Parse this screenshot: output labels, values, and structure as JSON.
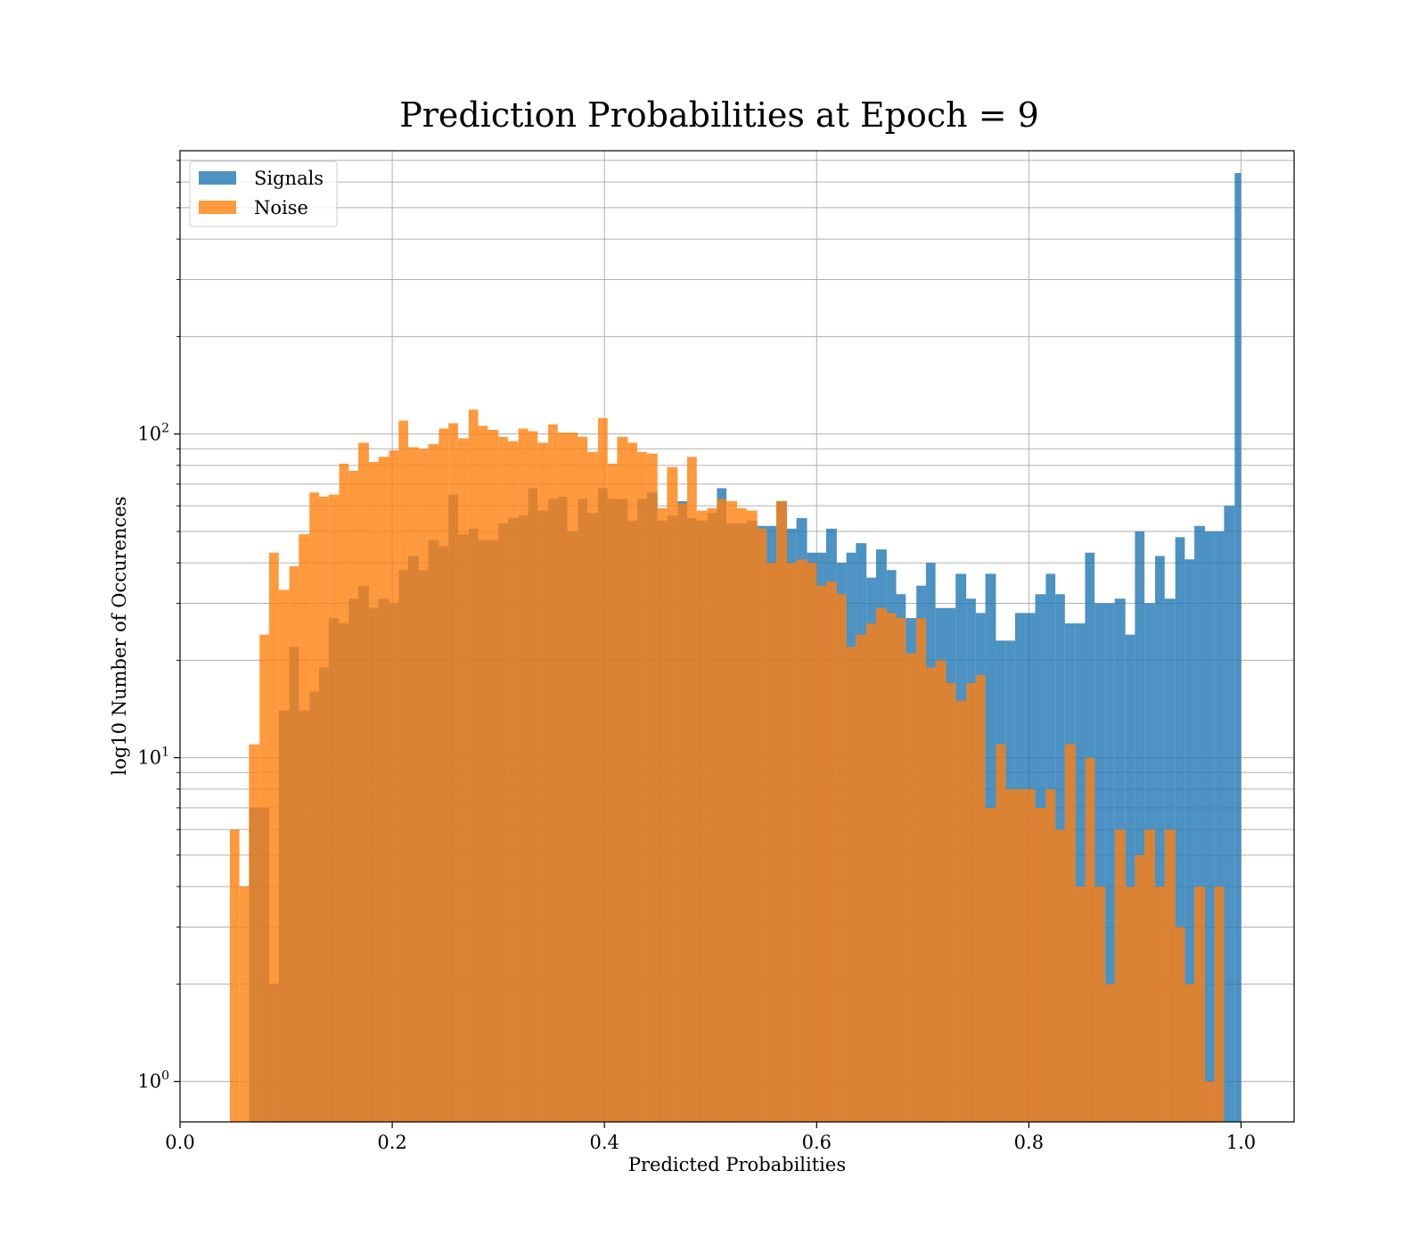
{
  "chart_data": {
    "type": "bar",
    "title": "Prediction Probabilities at Epoch = 9",
    "xlabel": "Predicted Probabilities",
    "ylabel": "log10 Number of Occurences",
    "xlim": [
      0.0,
      1.05
    ],
    "ylim": [
      0.75,
      750
    ],
    "yscale": "log",
    "grid": true,
    "legend": {
      "placement": "top-left"
    },
    "x_ticks": [
      "0.0",
      "0.2",
      "0.4",
      "0.6",
      "0.8",
      "1.0"
    ],
    "y_ticks": [
      {
        "value": 1,
        "base": "10",
        "exp": "0"
      },
      {
        "value": 10,
        "base": "10",
        "exp": "1"
      },
      {
        "value": 100,
        "base": "10",
        "exp": "2"
      }
    ],
    "series": [
      {
        "name": "Signals",
        "color": "#1f77b4",
        "bins": [
          [
            0.065,
            0.075,
            7
          ],
          [
            0.075,
            0.084,
            7
          ],
          [
            0.084,
            0.093,
            2
          ],
          [
            0.093,
            0.103,
            14
          ],
          [
            0.103,
            0.112,
            22
          ],
          [
            0.112,
            0.122,
            14
          ],
          [
            0.122,
            0.131,
            16
          ],
          [
            0.131,
            0.14,
            19
          ],
          [
            0.14,
            0.15,
            27
          ],
          [
            0.15,
            0.159,
            26
          ],
          [
            0.159,
            0.168,
            31
          ],
          [
            0.168,
            0.178,
            34
          ],
          [
            0.178,
            0.187,
            29
          ],
          [
            0.187,
            0.197,
            31
          ],
          [
            0.197,
            0.206,
            30
          ],
          [
            0.206,
            0.215,
            38
          ],
          [
            0.215,
            0.225,
            42
          ],
          [
            0.225,
            0.234,
            38
          ],
          [
            0.234,
            0.244,
            47
          ],
          [
            0.244,
            0.253,
            45
          ],
          [
            0.253,
            0.262,
            65
          ],
          [
            0.262,
            0.272,
            49
          ],
          [
            0.272,
            0.281,
            51
          ],
          [
            0.281,
            0.29,
            47
          ],
          [
            0.29,
            0.3,
            47
          ],
          [
            0.3,
            0.309,
            53
          ],
          [
            0.309,
            0.319,
            55
          ],
          [
            0.319,
            0.328,
            56
          ],
          [
            0.328,
            0.337,
            68
          ],
          [
            0.337,
            0.347,
            58
          ],
          [
            0.347,
            0.356,
            63
          ],
          [
            0.356,
            0.365,
            64
          ],
          [
            0.365,
            0.375,
            50
          ],
          [
            0.375,
            0.384,
            63
          ],
          [
            0.384,
            0.394,
            57
          ],
          [
            0.394,
            0.403,
            68
          ],
          [
            0.403,
            0.412,
            63
          ],
          [
            0.412,
            0.422,
            63
          ],
          [
            0.422,
            0.431,
            54
          ],
          [
            0.431,
            0.44,
            63
          ],
          [
            0.44,
            0.45,
            66
          ],
          [
            0.45,
            0.459,
            54
          ],
          [
            0.459,
            0.469,
            56
          ],
          [
            0.469,
            0.478,
            62
          ],
          [
            0.478,
            0.487,
            55
          ],
          [
            0.487,
            0.497,
            54
          ],
          [
            0.497,
            0.506,
            57
          ],
          [
            0.506,
            0.515,
            68
          ],
          [
            0.515,
            0.525,
            53
          ],
          [
            0.525,
            0.534,
            53
          ],
          [
            0.534,
            0.544,
            54
          ],
          [
            0.544,
            0.553,
            52
          ],
          [
            0.553,
            0.562,
            52
          ],
          [
            0.562,
            0.572,
            62
          ],
          [
            0.572,
            0.581,
            51
          ],
          [
            0.581,
            0.591,
            55
          ],
          [
            0.591,
            0.6,
            43
          ],
          [
            0.6,
            0.609,
            43
          ],
          [
            0.609,
            0.619,
            51
          ],
          [
            0.619,
            0.628,
            40
          ],
          [
            0.628,
            0.637,
            43
          ],
          [
            0.637,
            0.647,
            46
          ],
          [
            0.647,
            0.656,
            36
          ],
          [
            0.656,
            0.666,
            44
          ],
          [
            0.666,
            0.675,
            38
          ],
          [
            0.675,
            0.684,
            32
          ],
          [
            0.684,
            0.694,
            27
          ],
          [
            0.694,
            0.703,
            34
          ],
          [
            0.703,
            0.712,
            40
          ],
          [
            0.712,
            0.722,
            29
          ],
          [
            0.722,
            0.731,
            29
          ],
          [
            0.731,
            0.741,
            37
          ],
          [
            0.741,
            0.75,
            31
          ],
          [
            0.75,
            0.759,
            28
          ],
          [
            0.759,
            0.769,
            37
          ],
          [
            0.769,
            0.778,
            23
          ],
          [
            0.778,
            0.787,
            23
          ],
          [
            0.787,
            0.797,
            28
          ],
          [
            0.797,
            0.806,
            28
          ],
          [
            0.806,
            0.816,
            32
          ],
          [
            0.816,
            0.825,
            37
          ],
          [
            0.825,
            0.834,
            32
          ],
          [
            0.834,
            0.844,
            26
          ],
          [
            0.844,
            0.853,
            26
          ],
          [
            0.853,
            0.862,
            43
          ],
          [
            0.862,
            0.872,
            30
          ],
          [
            0.872,
            0.881,
            30
          ],
          [
            0.881,
            0.891,
            31
          ],
          [
            0.891,
            0.9,
            24
          ],
          [
            0.9,
            0.909,
            50
          ],
          [
            0.909,
            0.919,
            30
          ],
          [
            0.919,
            0.928,
            42
          ],
          [
            0.928,
            0.938,
            31
          ],
          [
            0.938,
            0.947,
            48
          ],
          [
            0.947,
            0.956,
            41
          ],
          [
            0.956,
            0.966,
            52
          ],
          [
            0.966,
            0.975,
            50
          ],
          [
            0.975,
            0.984,
            50
          ],
          [
            0.984,
            0.994,
            60
          ],
          [
            0.994,
            1.0,
            640
          ]
        ]
      },
      {
        "name": "Noise",
        "color": "#ff7f0e",
        "bins": [
          [
            0.047,
            0.056,
            6
          ],
          [
            0.056,
            0.065,
            4
          ],
          [
            0.065,
            0.075,
            11
          ],
          [
            0.075,
            0.084,
            24
          ],
          [
            0.084,
            0.093,
            43
          ],
          [
            0.093,
            0.103,
            33
          ],
          [
            0.103,
            0.112,
            39
          ],
          [
            0.112,
            0.122,
            49
          ],
          [
            0.122,
            0.131,
            66
          ],
          [
            0.131,
            0.14,
            64
          ],
          [
            0.14,
            0.15,
            65
          ],
          [
            0.15,
            0.159,
            81
          ],
          [
            0.159,
            0.168,
            77
          ],
          [
            0.168,
            0.178,
            94
          ],
          [
            0.178,
            0.187,
            82
          ],
          [
            0.187,
            0.197,
            85
          ],
          [
            0.197,
            0.206,
            89
          ],
          [
            0.206,
            0.215,
            110
          ],
          [
            0.215,
            0.225,
            91
          ],
          [
            0.225,
            0.234,
            90
          ],
          [
            0.234,
            0.244,
            93
          ],
          [
            0.244,
            0.253,
            104
          ],
          [
            0.253,
            0.262,
            108
          ],
          [
            0.262,
            0.272,
            97
          ],
          [
            0.272,
            0.281,
            119
          ],
          [
            0.281,
            0.29,
            106
          ],
          [
            0.29,
            0.3,
            103
          ],
          [
            0.3,
            0.309,
            98
          ],
          [
            0.309,
            0.319,
            95
          ],
          [
            0.319,
            0.328,
            104
          ],
          [
            0.328,
            0.337,
            102
          ],
          [
            0.337,
            0.347,
            94
          ],
          [
            0.347,
            0.356,
            107
          ],
          [
            0.356,
            0.365,
            101
          ],
          [
            0.365,
            0.375,
            101
          ],
          [
            0.375,
            0.384,
            98
          ],
          [
            0.384,
            0.394,
            88
          ],
          [
            0.394,
            0.403,
            112
          ],
          [
            0.403,
            0.412,
            81
          ],
          [
            0.412,
            0.422,
            98
          ],
          [
            0.422,
            0.431,
            94
          ],
          [
            0.431,
            0.44,
            88
          ],
          [
            0.44,
            0.45,
            87
          ],
          [
            0.45,
            0.459,
            59
          ],
          [
            0.459,
            0.469,
            79
          ],
          [
            0.469,
            0.478,
            61
          ],
          [
            0.478,
            0.487,
            85
          ],
          [
            0.487,
            0.497,
            58
          ],
          [
            0.497,
            0.506,
            59
          ],
          [
            0.506,
            0.515,
            63
          ],
          [
            0.515,
            0.525,
            62
          ],
          [
            0.525,
            0.534,
            59
          ],
          [
            0.534,
            0.544,
            58
          ],
          [
            0.544,
            0.553,
            51
          ],
          [
            0.553,
            0.562,
            40
          ],
          [
            0.562,
            0.572,
            62
          ],
          [
            0.572,
            0.581,
            40
          ],
          [
            0.581,
            0.591,
            41
          ],
          [
            0.591,
            0.6,
            40
          ],
          [
            0.6,
            0.609,
            34
          ],
          [
            0.609,
            0.619,
            35
          ],
          [
            0.619,
            0.628,
            32
          ],
          [
            0.628,
            0.637,
            22
          ],
          [
            0.637,
            0.647,
            24
          ],
          [
            0.647,
            0.656,
            26
          ],
          [
            0.656,
            0.666,
            29
          ],
          [
            0.666,
            0.675,
            28
          ],
          [
            0.675,
            0.684,
            27
          ],
          [
            0.684,
            0.694,
            21
          ],
          [
            0.694,
            0.703,
            27
          ],
          [
            0.703,
            0.712,
            19
          ],
          [
            0.712,
            0.722,
            20
          ],
          [
            0.722,
            0.731,
            17
          ],
          [
            0.731,
            0.741,
            15
          ],
          [
            0.741,
            0.75,
            17
          ],
          [
            0.75,
            0.759,
            18
          ],
          [
            0.759,
            0.769,
            7
          ],
          [
            0.769,
            0.778,
            11
          ],
          [
            0.778,
            0.787,
            8
          ],
          [
            0.787,
            0.797,
            8
          ],
          [
            0.797,
            0.806,
            8
          ],
          [
            0.806,
            0.816,
            7
          ],
          [
            0.816,
            0.825,
            8
          ],
          [
            0.825,
            0.834,
            6
          ],
          [
            0.834,
            0.844,
            11
          ],
          [
            0.844,
            0.853,
            4
          ],
          [
            0.853,
            0.862,
            10
          ],
          [
            0.862,
            0.872,
            4
          ],
          [
            0.872,
            0.881,
            2
          ],
          [
            0.881,
            0.891,
            6
          ],
          [
            0.891,
            0.9,
            4
          ],
          [
            0.9,
            0.909,
            5
          ],
          [
            0.909,
            0.919,
            6
          ],
          [
            0.919,
            0.928,
            4
          ],
          [
            0.928,
            0.938,
            6
          ],
          [
            0.938,
            0.947,
            3
          ],
          [
            0.947,
            0.956,
            2
          ],
          [
            0.956,
            0.966,
            4
          ],
          [
            0.966,
            0.975,
            1
          ],
          [
            0.975,
            0.984,
            4
          ]
        ]
      }
    ]
  }
}
